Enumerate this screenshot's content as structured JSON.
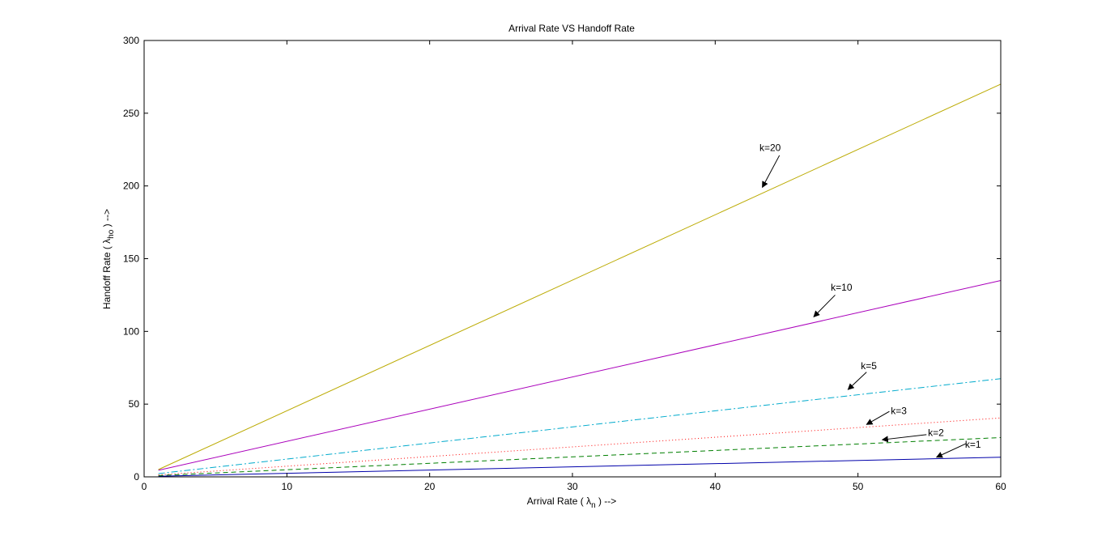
{
  "chart_data": {
    "type": "line",
    "title": "Arrival Rate VS Handoff Rate",
    "xlabel": {
      "prefix": "Arrival Rate ( ",
      "symbol": "λ",
      "subscript": "n",
      "suffix": " )  -->"
    },
    "ylabel": {
      "prefix": "Handoff Rate ( ",
      "symbol": "λ",
      "subscript": "ho",
      "suffix": " ) -->"
    },
    "xlim": [
      0,
      60
    ],
    "ylim": [
      0,
      300
    ],
    "xticks": [
      0,
      10,
      20,
      30,
      40,
      50,
      60
    ],
    "yticks": [
      0,
      50,
      100,
      150,
      200,
      250,
      300
    ],
    "grid": false,
    "series": [
      {
        "name": "k=1",
        "k": 1,
        "color": "#0000aa",
        "dash": "",
        "x": [
          1,
          60
        ],
        "y": [
          0.45,
          13.5
        ]
      },
      {
        "name": "k=2",
        "k": 2,
        "color": "#007f00",
        "dash": "6 4",
        "x": [
          1,
          60
        ],
        "y": [
          0.9,
          27
        ]
      },
      {
        "name": "k=3",
        "k": 3,
        "color": "#ff0000",
        "dash": "1 3",
        "x": [
          1,
          60
        ],
        "y": [
          1.35,
          40.5
        ]
      },
      {
        "name": "k=5",
        "k": 5,
        "color": "#00aacc",
        "dash": "8 3 2 3",
        "x": [
          1,
          60
        ],
        "y": [
          2.25,
          67.5
        ]
      },
      {
        "name": "k=10",
        "k": 10,
        "color": "#aa00bb",
        "dash": "",
        "x": [
          1,
          60
        ],
        "y": [
          4.5,
          135
        ]
      },
      {
        "name": "k=20",
        "k": 20,
        "color": "#bbaa00",
        "dash": "",
        "x": [
          1,
          60
        ],
        "y": [
          5,
          270
        ]
      }
    ],
    "annotations": [
      {
        "text": "k=20",
        "text_at": [
          43.1,
          224
        ],
        "arrow_from": [
          44.5,
          221
        ],
        "arrow_to": [
          43.3,
          199
        ]
      },
      {
        "text": "k=10",
        "text_at": [
          48.1,
          128
        ],
        "arrow_from": [
          48.4,
          125
        ],
        "arrow_to": [
          46.9,
          110
        ]
      },
      {
        "text": "k=5",
        "text_at": [
          50.2,
          74
        ],
        "arrow_from": [
          50.6,
          72
        ],
        "arrow_to": [
          49.3,
          60
        ]
      },
      {
        "text": "k=3",
        "text_at": [
          52.3,
          43
        ],
        "arrow_from": [
          52.2,
          45
        ],
        "arrow_to": [
          50.6,
          36
        ]
      },
      {
        "text": "k=2",
        "text_at": [
          54.9,
          28
        ],
        "arrow_from": [
          54.8,
          29
        ],
        "arrow_to": [
          51.7,
          25.5
        ]
      },
      {
        "text": "k=1",
        "text_at": [
          57.5,
          20
        ],
        "arrow_from": [
          57.6,
          23
        ],
        "arrow_to": [
          55.5,
          13.5
        ]
      }
    ]
  }
}
